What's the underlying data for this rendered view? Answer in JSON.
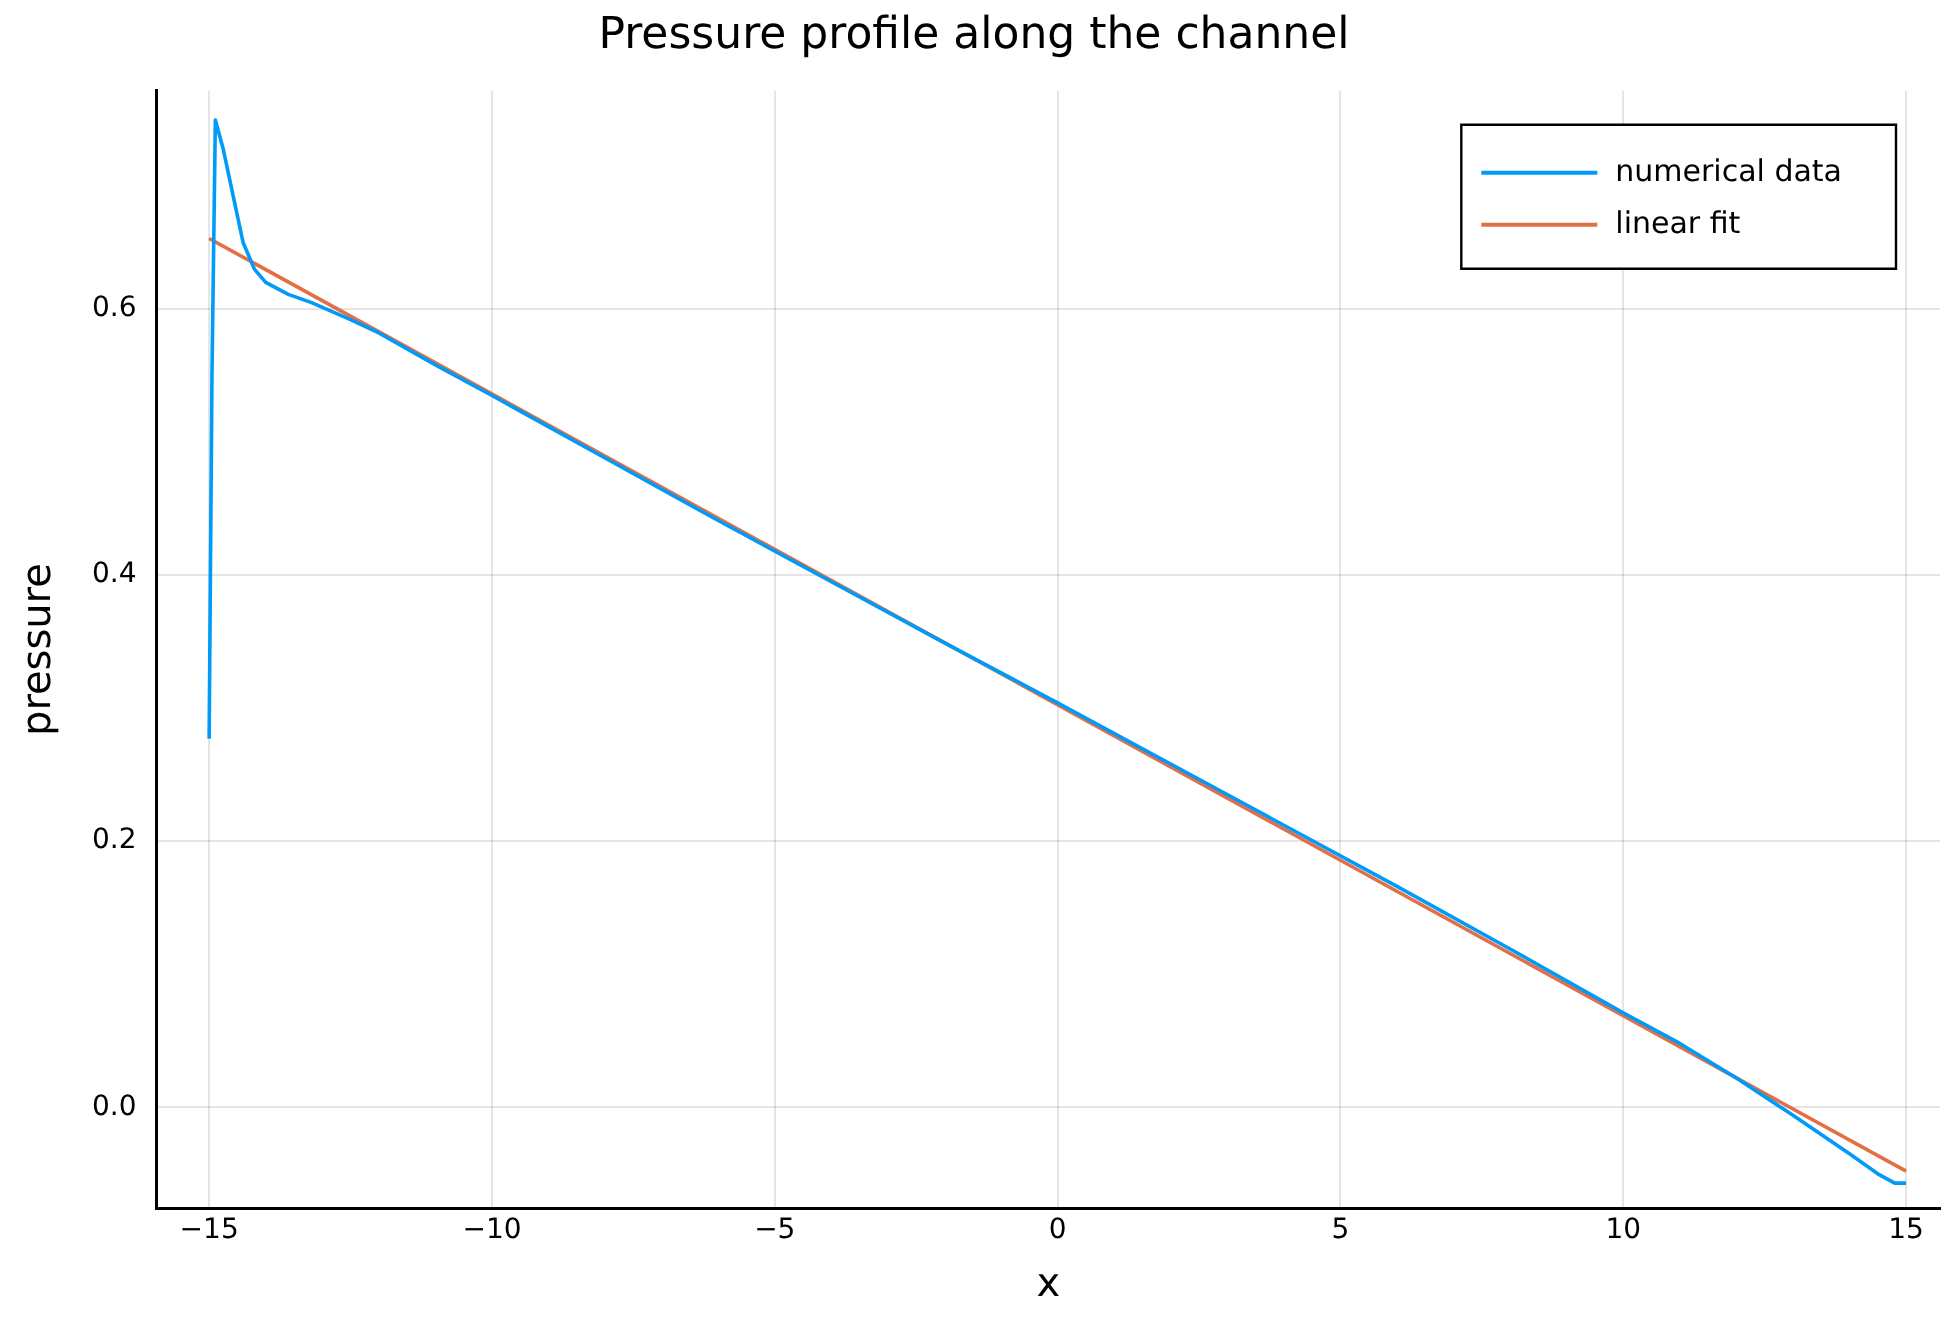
{
  "chart_data": {
    "type": "line",
    "title": "Pressure profile along the channel",
    "xlabel": "x",
    "ylabel": "pressure",
    "xlim": [
      -15.93,
      15.6
    ],
    "xticks": [
      {
        "value": -15,
        "label": "−15"
      },
      {
        "value": -10,
        "label": "−10"
      },
      {
        "value": -5,
        "label": "−5"
      },
      0,
      5,
      10,
      15
    ],
    "ylim": [
      -0.076,
      0.764
    ],
    "yticks": [
      {
        "value": 0,
        "label": "0.0"
      },
      0.2,
      0.4,
      0.6
    ],
    "grid": true,
    "legend": "top right",
    "marker": "none",
    "line_style": "solid",
    "series": [
      {
        "name": "numerical data",
        "color": "#009af9",
        "x": [
          -15,
          -14.95,
          -14.89,
          -14.75,
          -14.6,
          -14.4,
          -14.2,
          -14.0,
          -13.6,
          -13.2,
          -12.5,
          -12,
          -11,
          -10,
          -8,
          -6,
          -4,
          -2,
          0,
          2,
          4,
          6,
          8,
          10,
          11,
          12,
          13,
          14,
          14.5,
          14.8,
          15
        ],
        "values": [
          0.277,
          0.55,
          0.742,
          0.72,
          0.69,
          0.65,
          0.63,
          0.62,
          0.611,
          0.605,
          0.592,
          0.582,
          0.558,
          0.535,
          0.488,
          0.441,
          0.395,
          0.349,
          0.304,
          0.258,
          0.212,
          0.166,
          0.119,
          0.071,
          0.048,
          0.022,
          -0.006,
          -0.035,
          -0.05,
          -0.057,
          -0.057
        ]
      },
      {
        "name": "linear fit",
        "color": "#e26f46",
        "x": [
          -15,
          15
        ],
        "values": [
          0.653,
          -0.048
        ]
      }
    ]
  }
}
